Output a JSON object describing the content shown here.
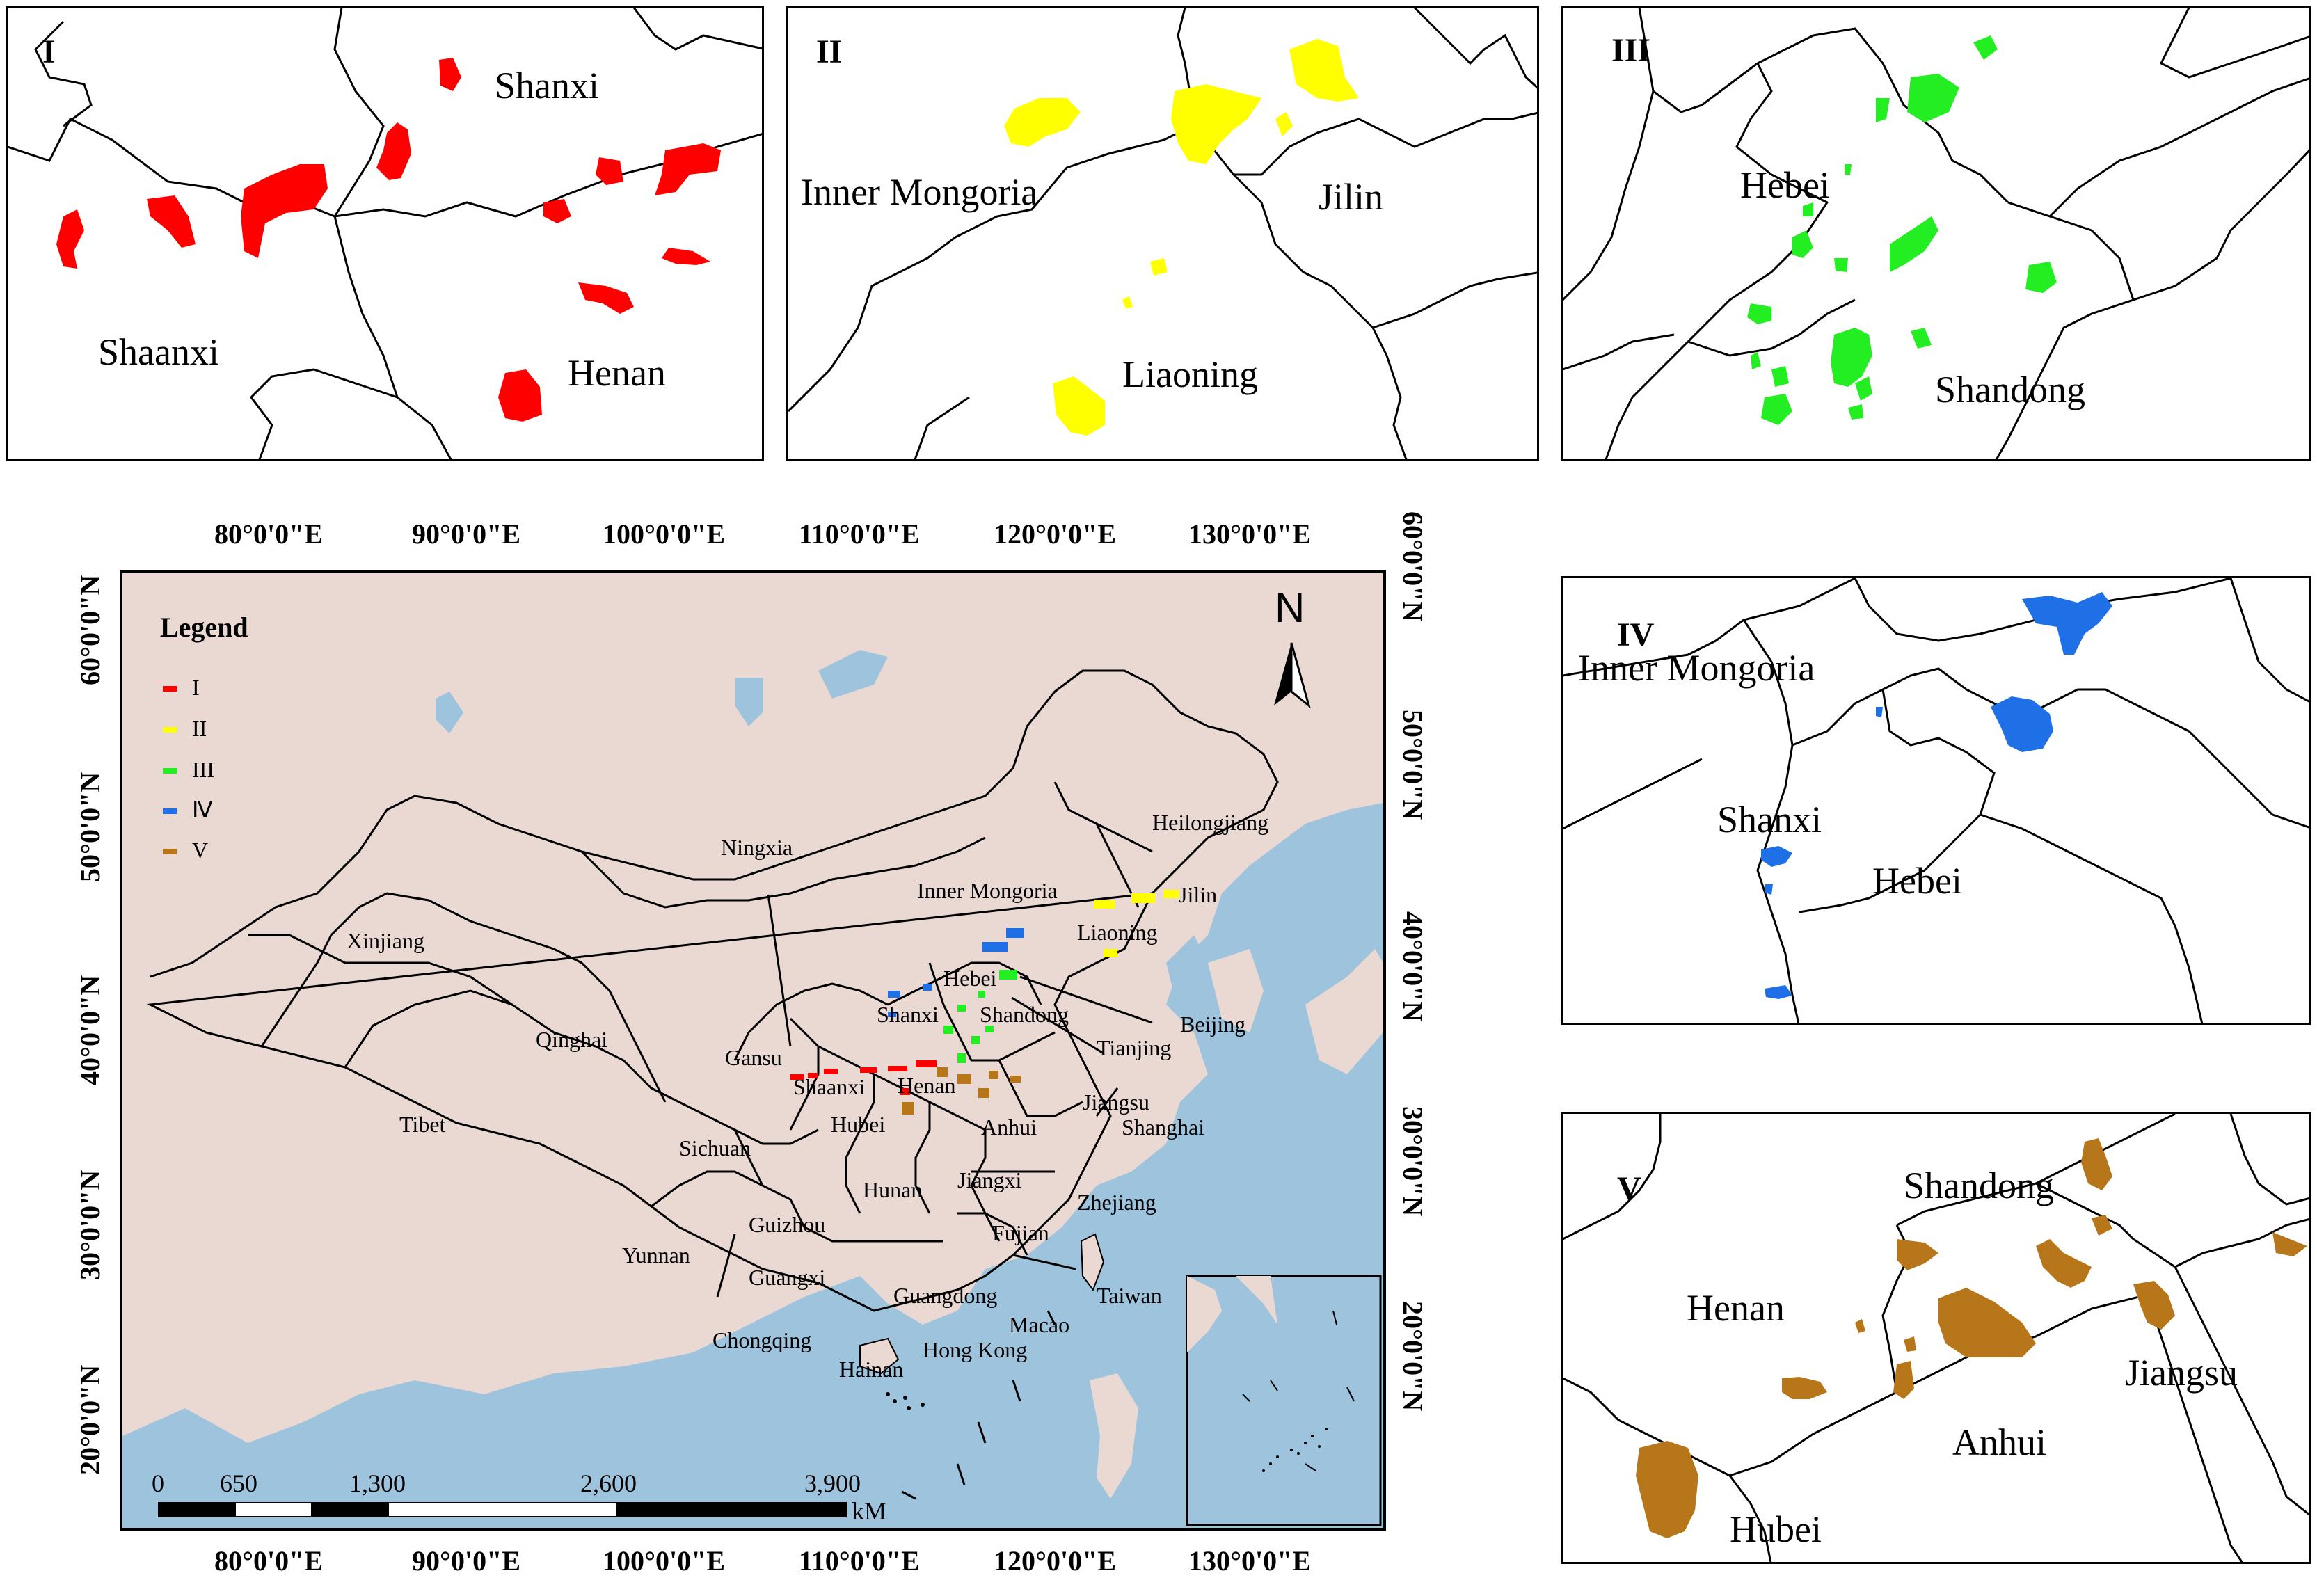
{
  "colors": {
    "class_I": "#ff0000",
    "class_II": "#ffff00",
    "class_III": "#22ee22",
    "class_IV": "#1f6fe6",
    "class_V": "#b8761a",
    "land": "#ead8d2",
    "sea": "#9ec3dd"
  },
  "panels": {
    "I": {
      "number": "I",
      "labels": [
        "Shanxi",
        "Shaanxi",
        "Henan"
      ]
    },
    "II": {
      "number": "II",
      "labels": [
        "Inner Mongoria",
        "Jilin",
        "Liaoning"
      ]
    },
    "III": {
      "number": "III",
      "labels": [
        "Hebei",
        "Shandong"
      ]
    },
    "IV": {
      "number": "IV",
      "labels": [
        "Inner Mongoria",
        "Shanxi",
        "Hebei"
      ]
    },
    "V": {
      "number": "V",
      "labels": [
        "Shandong",
        "Henan",
        "Jiangsu",
        "Anhui",
        "Hubei"
      ]
    }
  },
  "main_map": {
    "legend": {
      "title": "Legend",
      "items": [
        "I",
        "II",
        "III",
        "Ⅳ",
        "V"
      ]
    },
    "north_label": "N",
    "top_ticks": [
      "80°0'0\"E",
      "90°0'0\"E",
      "100°0'0\"E",
      "110°0'0\"E",
      "120°0'0\"E",
      "130°0'0\"E"
    ],
    "bottom_ticks": [
      "80°0'0\"E",
      "90°0'0\"E",
      "100°0'0\"E",
      "110°0'0\"E",
      "120°0'0\"E",
      "130°0'0\"E"
    ],
    "left_ticks": [
      "60°0'0\"N",
      "50°0'0\"N",
      "40°0'0\"N",
      "30°0'0\"N",
      "20°0'0\"N"
    ],
    "right_ticks": [
      "60°0'0\"N",
      "50°0'0\"N",
      "40°0'0\"N",
      "30°0'0\"N",
      "20°0'0\"N"
    ],
    "scale_bar": {
      "ticks": [
        "0",
        "650",
        "1,300",
        "2,600",
        "3,900"
      ],
      "unit": "kM"
    },
    "provinces": [
      "Heilongjiang",
      "Ningxia",
      "Inner Mongoria",
      "Jilin",
      "Xinjiang",
      "Liaoning",
      "Hebei",
      "Beijing",
      "Shanxi",
      "Shandong",
      "Qinghai",
      "Tianjing",
      "Gansu",
      "Shaanxi",
      "Henan",
      "Jiangsu",
      "Tibet",
      "Hubei",
      "Anhui",
      "Shanghai",
      "Sichuan",
      "Hunan",
      "Jiangxi",
      "Zhejiang",
      "Guizhou",
      "Fujian",
      "Yunnan",
      "Guangxi",
      "Guangdong",
      "Taiwan",
      "Macao",
      "Chongqing",
      "Hong Kong",
      "Hainan"
    ]
  }
}
